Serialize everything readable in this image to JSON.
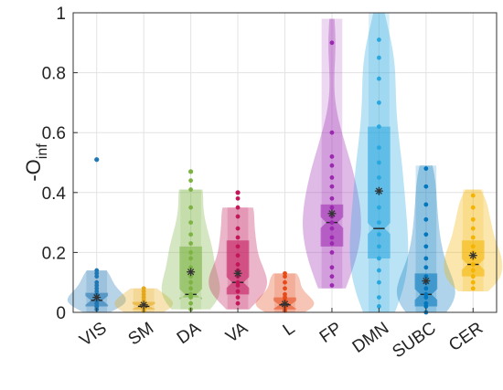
{
  "chart_data": {
    "type": "violin",
    "title": "",
    "xlabel": "",
    "ylabel": {
      "main": "-O",
      "sub": "inf"
    },
    "ylim": [
      0,
      1
    ],
    "yticks": [
      "0",
      "0.2",
      "0.4",
      "0.6",
      "0.8",
      "1"
    ],
    "grid": true,
    "categories": [
      "VIS",
      "SM",
      "DA",
      "VA",
      "L",
      "FP",
      "DMN",
      "SUBC",
      "CER"
    ],
    "series": [
      {
        "color": "#1f77b4",
        "min": 0.0,
        "max": 0.14,
        "q1": 0.02,
        "median": 0.04,
        "q3": 0.065,
        "mean": 0.05,
        "outliers": [
          0.51
        ],
        "points": [
          0.01,
          0.02,
          0.02,
          0.03,
          0.03,
          0.04,
          0.04,
          0.05,
          0.05,
          0.06,
          0.07,
          0.08,
          0.09,
          0.1,
          0.12,
          0.13,
          0.14
        ]
      },
      {
        "color": "#e6a817",
        "min": 0.0,
        "max": 0.08,
        "q1": 0.01,
        "median": 0.02,
        "q3": 0.035,
        "mean": 0.025,
        "outliers": [],
        "points": [
          0.005,
          0.01,
          0.015,
          0.02,
          0.02,
          0.03,
          0.03,
          0.04,
          0.05,
          0.06,
          0.07,
          0.08
        ]
      },
      {
        "color": "#7cb342",
        "min": 0.01,
        "max": 0.41,
        "q1": 0.05,
        "median": 0.06,
        "q3": 0.22,
        "mean": 0.135,
        "outliers": [
          0.47
        ],
        "points": [
          0.01,
          0.03,
          0.05,
          0.06,
          0.08,
          0.1,
          0.12,
          0.15,
          0.18,
          0.2,
          0.23,
          0.26,
          0.3,
          0.35,
          0.41,
          0.44
        ]
      },
      {
        "color": "#c2185b",
        "min": 0.01,
        "max": 0.35,
        "q1": 0.06,
        "median": 0.1,
        "q3": 0.24,
        "mean": 0.13,
        "outliers": [
          0.4
        ],
        "points": [
          0.03,
          0.05,
          0.07,
          0.09,
          0.1,
          0.12,
          0.14,
          0.16,
          0.19,
          0.22,
          0.25,
          0.28,
          0.32,
          0.35,
          0.38
        ]
      },
      {
        "color": "#e64a19",
        "min": 0.0,
        "max": 0.13,
        "q1": 0.01,
        "median": 0.025,
        "q3": 0.05,
        "mean": 0.028,
        "outliers": [],
        "points": [
          0.005,
          0.01,
          0.02,
          0.02,
          0.03,
          0.04,
          0.05,
          0.06,
          0.08,
          0.1,
          0.12,
          0.13
        ]
      },
      {
        "color": "#9c27b0",
        "min": 0.08,
        "max": 0.98,
        "q1": 0.22,
        "median": 0.3,
        "q3": 0.36,
        "mean": 0.33,
        "outliers": [],
        "points": [
          0.09,
          0.12,
          0.15,
          0.2,
          0.23,
          0.25,
          0.28,
          0.3,
          0.32,
          0.35,
          0.38,
          0.42,
          0.45,
          0.49,
          0.52,
          0.6,
          0.9
        ]
      },
      {
        "color": "#29a8e0",
        "min": 0.0,
        "max": 1.0,
        "q1": 0.18,
        "median": 0.28,
        "q3": 0.62,
        "mean": 0.405,
        "outliers": [],
        "points": [
          0.02,
          0.05,
          0.1,
          0.14,
          0.18,
          0.22,
          0.26,
          0.3,
          0.35,
          0.4,
          0.45,
          0.5,
          0.55,
          0.62,
          0.7,
          0.78,
          0.85,
          0.91
        ]
      },
      {
        "color": "#0277bd",
        "min": 0.0,
        "max": 0.49,
        "q1": 0.02,
        "median": 0.06,
        "q3": 0.13,
        "mean": 0.105,
        "outliers": [],
        "points": [
          0.0,
          0.02,
          0.03,
          0.05,
          0.06,
          0.08,
          0.1,
          0.12,
          0.15,
          0.18,
          0.22,
          0.26,
          0.31,
          0.36,
          0.42,
          0.48
        ]
      },
      {
        "color": "#f4b400",
        "min": 0.07,
        "max": 0.41,
        "q1": 0.12,
        "median": 0.16,
        "q3": 0.24,
        "mean": 0.19,
        "outliers": [],
        "points": [
          0.08,
          0.1,
          0.12,
          0.14,
          0.16,
          0.18,
          0.2,
          0.22,
          0.25,
          0.28,
          0.31,
          0.35,
          0.39
        ]
      }
    ]
  }
}
